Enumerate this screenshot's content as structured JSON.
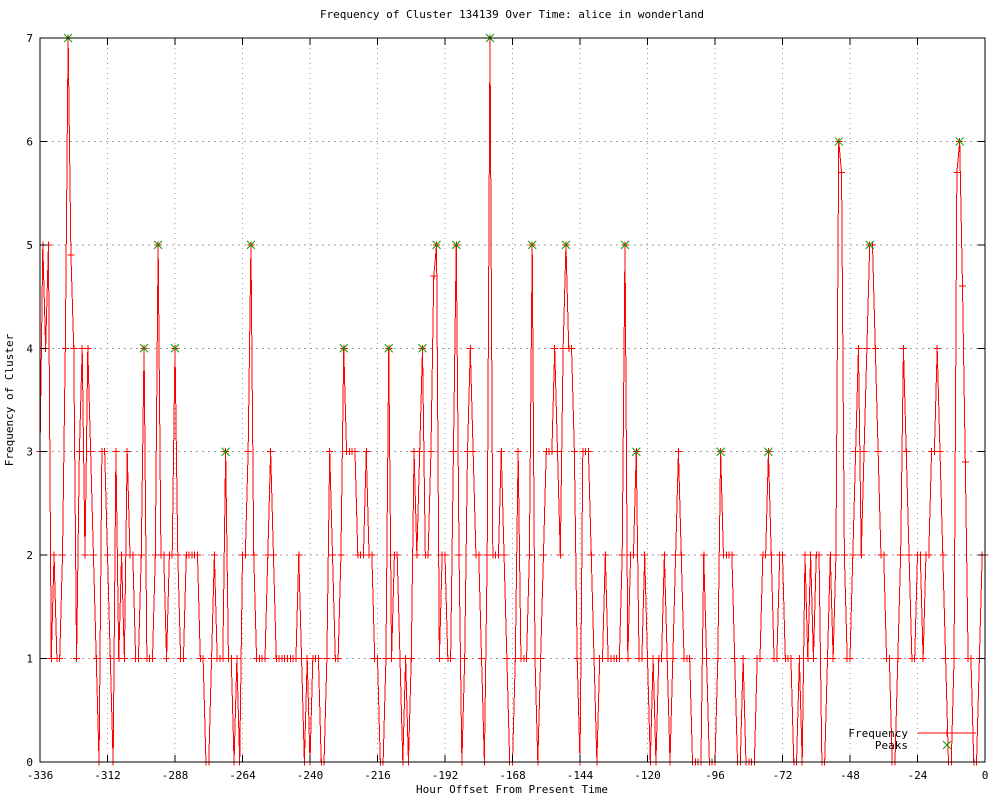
{
  "title": "Frequency of Cluster 134139 Over Time: alice in wonderland",
  "x_axis": {
    "label": "Hour Offset From Present Time",
    "min": -336,
    "max": 0,
    "ticks": [
      -336,
      -312,
      -288,
      -264,
      -240,
      -216,
      -192,
      -168,
      -144,
      -120,
      -96,
      -72,
      -48,
      -24,
      0
    ]
  },
  "y_axis": {
    "label": "Frequency of Cluster",
    "min": 0,
    "max": 7,
    "ticks": [
      0,
      1,
      2,
      3,
      4,
      5,
      6,
      7
    ]
  },
  "legend": {
    "position": "bottom-right",
    "items": [
      {
        "label": "Frequency",
        "color": "#ff0000",
        "marker": "plus"
      },
      {
        "label": "Peaks",
        "color": "#00a000",
        "marker": "cross"
      }
    ]
  },
  "colors": {
    "series": "#ff0000",
    "peaks": "#00a000",
    "grid": "#9e9e9e",
    "border": "#000000",
    "background": "#ffffff"
  },
  "chart_data": {
    "type": "line",
    "xlabel": "Hour Offset From Present Time",
    "ylabel": "Frequency of Cluster",
    "xlim": [
      -336,
      0
    ],
    "ylim": [
      0,
      7
    ],
    "grid": true,
    "series": [
      {
        "name": "Frequency",
        "color": "#ff0000",
        "marker": "plus",
        "x_start": -336,
        "x_step": 1,
        "values": [
          3,
          5,
          4,
          5,
          1,
          2,
          1,
          1,
          2,
          4,
          7,
          4.9,
          4,
          1,
          3,
          4,
          2,
          4,
          3,
          2,
          1,
          0,
          3,
          3,
          2,
          1,
          0,
          3,
          1,
          2,
          1,
          3,
          2,
          2,
          1,
          1,
          2,
          4,
          1,
          1,
          1,
          2,
          5,
          2,
          2,
          1,
          2,
          2,
          4,
          2,
          1,
          1,
          2,
          2,
          2,
          2,
          2,
          1,
          1,
          0,
          0,
          1,
          2,
          1,
          1,
          1,
          3,
          1,
          1,
          0,
          1,
          0,
          2,
          2,
          3,
          5,
          2,
          1,
          1,
          1,
          1,
          2,
          3,
          2,
          1,
          1,
          1,
          1,
          1,
          1,
          1,
          1,
          2,
          1,
          0,
          1,
          0,
          1,
          1,
          1,
          0,
          0,
          1,
          3,
          2,
          1,
          1,
          2,
          4,
          3,
          3,
          3,
          3,
          2,
          2,
          2,
          3,
          2,
          2,
          1,
          1,
          0,
          0,
          1,
          4,
          1,
          2,
          2,
          1,
          0,
          1,
          0,
          1,
          3,
          2,
          3,
          4,
          2,
          2,
          3,
          4.7,
          5,
          1,
          2,
          2,
          1,
          1,
          3,
          5,
          2,
          0,
          1,
          3,
          4,
          3,
          2,
          2,
          1,
          0,
          2,
          7,
          2,
          2,
          2,
          3,
          2,
          1,
          0,
          0,
          1,
          3,
          1,
          1,
          1,
          2,
          5,
          1,
          0,
          1,
          2,
          3,
          3,
          3,
          4,
          3,
          2,
          4,
          5,
          4,
          4,
          3,
          1,
          0,
          3,
          3,
          3,
          2,
          1,
          0,
          1,
          1,
          2,
          1,
          1,
          1,
          1,
          1,
          2,
          5,
          1,
          2,
          2,
          3,
          1,
          1,
          2,
          1,
          0,
          1,
          0,
          1,
          1,
          2,
          1,
          0,
          1,
          2,
          3,
          2,
          1,
          1,
          1,
          0,
          0,
          0,
          0,
          2,
          1,
          0,
          0,
          0,
          1,
          3,
          2,
          2,
          2,
          2,
          1,
          0,
          0,
          1,
          0,
          0,
          0,
          0,
          1,
          1,
          2,
          2,
          3,
          2,
          1,
          1,
          2,
          2,
          1,
          1,
          1,
          0,
          0,
          1,
          0,
          2,
          1,
          2,
          1,
          2,
          2,
          0,
          0,
          1,
          2,
          1,
          2,
          6,
          5.7,
          2,
          1,
          1,
          2,
          3,
          4,
          2,
          3,
          4,
          5,
          5,
          4,
          3,
          2,
          2,
          1,
          1,
          0,
          0,
          1,
          2,
          4,
          3,
          2,
          1,
          1,
          2,
          2,
          1,
          2,
          2,
          3,
          3,
          4,
          3,
          2,
          1,
          0,
          0,
          1,
          5.7,
          6,
          4.6,
          2.9,
          1,
          1,
          0,
          0,
          1,
          2,
          2
        ]
      },
      {
        "name": "Peaks",
        "color": "#00a000",
        "marker": "cross",
        "points": [
          [
            -326,
            7
          ],
          [
            -299,
            4
          ],
          [
            -294,
            5
          ],
          [
            -288,
            4
          ],
          [
            -270,
            3
          ],
          [
            -261,
            5
          ],
          [
            -228,
            4
          ],
          [
            -212,
            4
          ],
          [
            -200,
            4
          ],
          [
            -195,
            5
          ],
          [
            -188,
            5
          ],
          [
            -176,
            7
          ],
          [
            -161,
            5
          ],
          [
            -149,
            5
          ],
          [
            -128,
            5
          ],
          [
            -124,
            3
          ],
          [
            -94,
            3
          ],
          [
            -77,
            3
          ],
          [
            -52,
            6
          ],
          [
            -41,
            5
          ],
          [
            -9,
            6
          ]
        ]
      }
    ]
  }
}
